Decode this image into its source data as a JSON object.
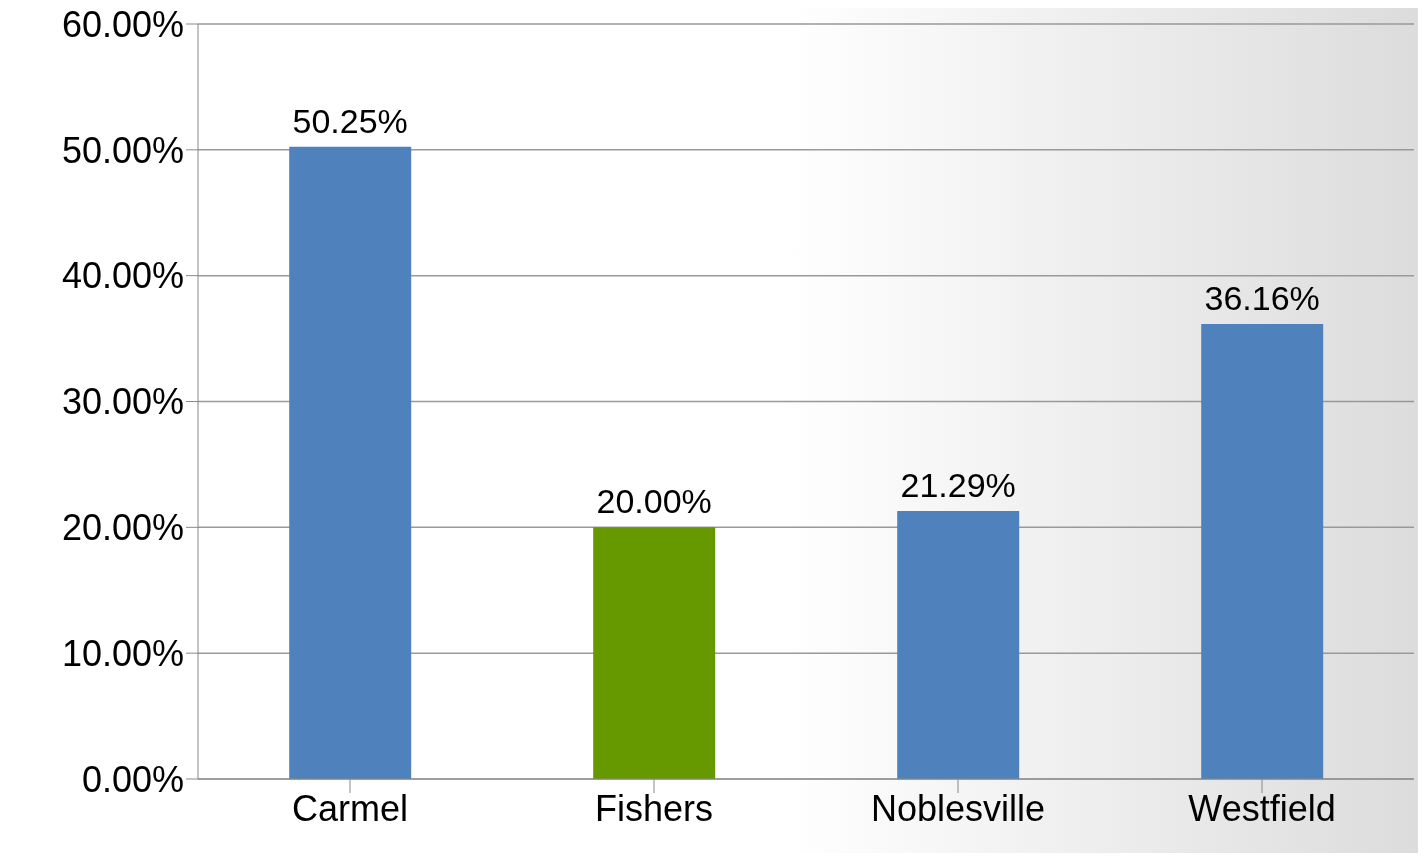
{
  "chart_data": {
    "type": "bar",
    "categories": [
      "Carmel",
      "Fishers",
      "Noblesville",
      "Westfield"
    ],
    "values": [
      50.25,
      20.0,
      21.29,
      36.16
    ],
    "colors": [
      "#4f81bd",
      "#669900",
      "#4f81bd",
      "#4f81bd"
    ],
    "value_labels": [
      "50.25%",
      "20.00%",
      "21.29%",
      "36.16%"
    ],
    "ylim": [
      0,
      60
    ],
    "yticks": [
      {
        "value": 0,
        "label": "0.00%"
      },
      {
        "value": 10,
        "label": "10.00%"
      },
      {
        "value": 20,
        "label": "20.00%"
      },
      {
        "value": 30,
        "label": "30.00%"
      },
      {
        "value": 40,
        "label": "40.00%"
      },
      {
        "value": 50,
        "label": "50.00%"
      },
      {
        "value": 60,
        "label": "60.00%"
      }
    ],
    "grid": "y",
    "legend": false
  }
}
